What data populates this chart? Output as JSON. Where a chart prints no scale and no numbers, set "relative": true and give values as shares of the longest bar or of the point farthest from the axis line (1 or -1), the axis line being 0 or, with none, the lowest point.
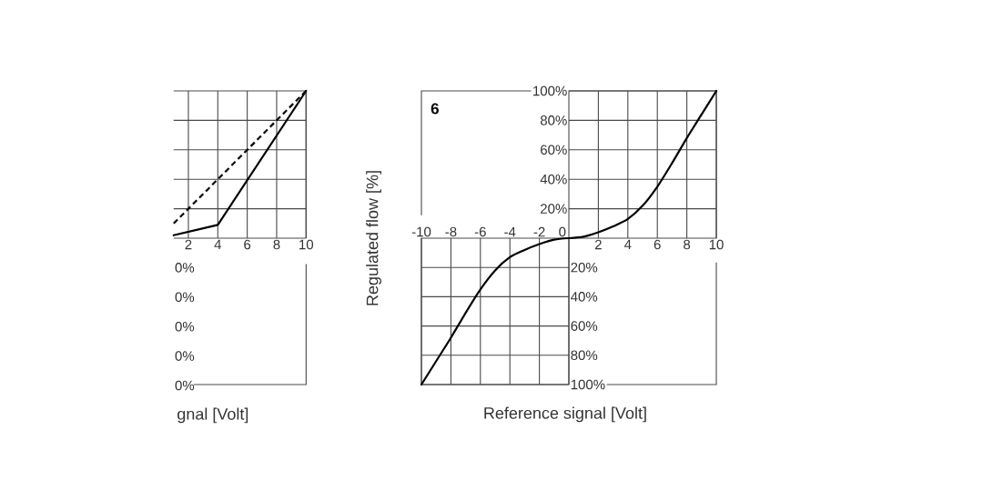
{
  "chart_data": [
    {
      "type": "line",
      "relative": true,
      "xlabel": "gnal [Volt]",
      "annotations": [
        "0%",
        "0%",
        "0%",
        "0%",
        "0%"
      ],
      "xlim": [
        1,
        10
      ],
      "xticks": [
        2,
        4,
        6,
        8,
        10
      ],
      "grid": true,
      "series": [
        {
          "color": "#000000",
          "x": [
            1,
            4,
            10
          ],
          "values": [
            0.02,
            0.09,
            1
          ]
        },
        {
          "color": "#000000",
          "line_style": "dashed",
          "x": [
            1,
            10
          ],
          "values": [
            0.1,
            1
          ]
        }
      ]
    },
    {
      "type": "line",
      "xlim": [
        0,
        10
      ],
      "ylim": [
        0,
        100
      ],
      "xticks": [
        2,
        4,
        6,
        8,
        10
      ],
      "yticks": [
        {
          "value": 100,
          "label": "100%"
        },
        {
          "value": 80,
          "label": "80%"
        },
        {
          "value": 60,
          "label": "60%"
        },
        {
          "value": 40,
          "label": "40%"
        },
        {
          "value": 20,
          "label": "20%"
        }
      ],
      "grid": true,
      "series": [
        {
          "color": "#000000",
          "x": [
            0,
            1,
            2,
            3,
            4,
            5,
            6,
            7,
            8,
            9,
            10
          ],
          "values": [
            0,
            1,
            4,
            8,
            13,
            22,
            35,
            51,
            68,
            84,
            100
          ]
        }
      ]
    },
    {
      "type": "line",
      "annotations": [
        "6"
      ],
      "xlabel": "Reference signal [Volt]",
      "ylabel": "Regulated flow [%]",
      "xlim": [
        -10,
        0
      ],
      "ylim": [
        -100,
        0
      ],
      "xticks": [
        -10,
        -8,
        -6,
        -4,
        -2,
        0
      ],
      "yticks": [
        {
          "value": -20,
          "label": "20%"
        },
        {
          "value": -40,
          "label": "40%"
        },
        {
          "value": -60,
          "label": "60%"
        },
        {
          "value": -80,
          "label": "80%"
        },
        {
          "value": -100,
          "label": "100%"
        }
      ],
      "grid": true,
      "series": [
        {
          "color": "#000000",
          "x": [
            -10,
            -9,
            -8,
            -7,
            -6,
            -5,
            -4,
            -3,
            -2,
            -1,
            0
          ],
          "values": [
            -100,
            -84,
            -68,
            -51,
            -35,
            -22,
            -13,
            -8,
            -4,
            -1,
            0
          ]
        }
      ]
    }
  ]
}
